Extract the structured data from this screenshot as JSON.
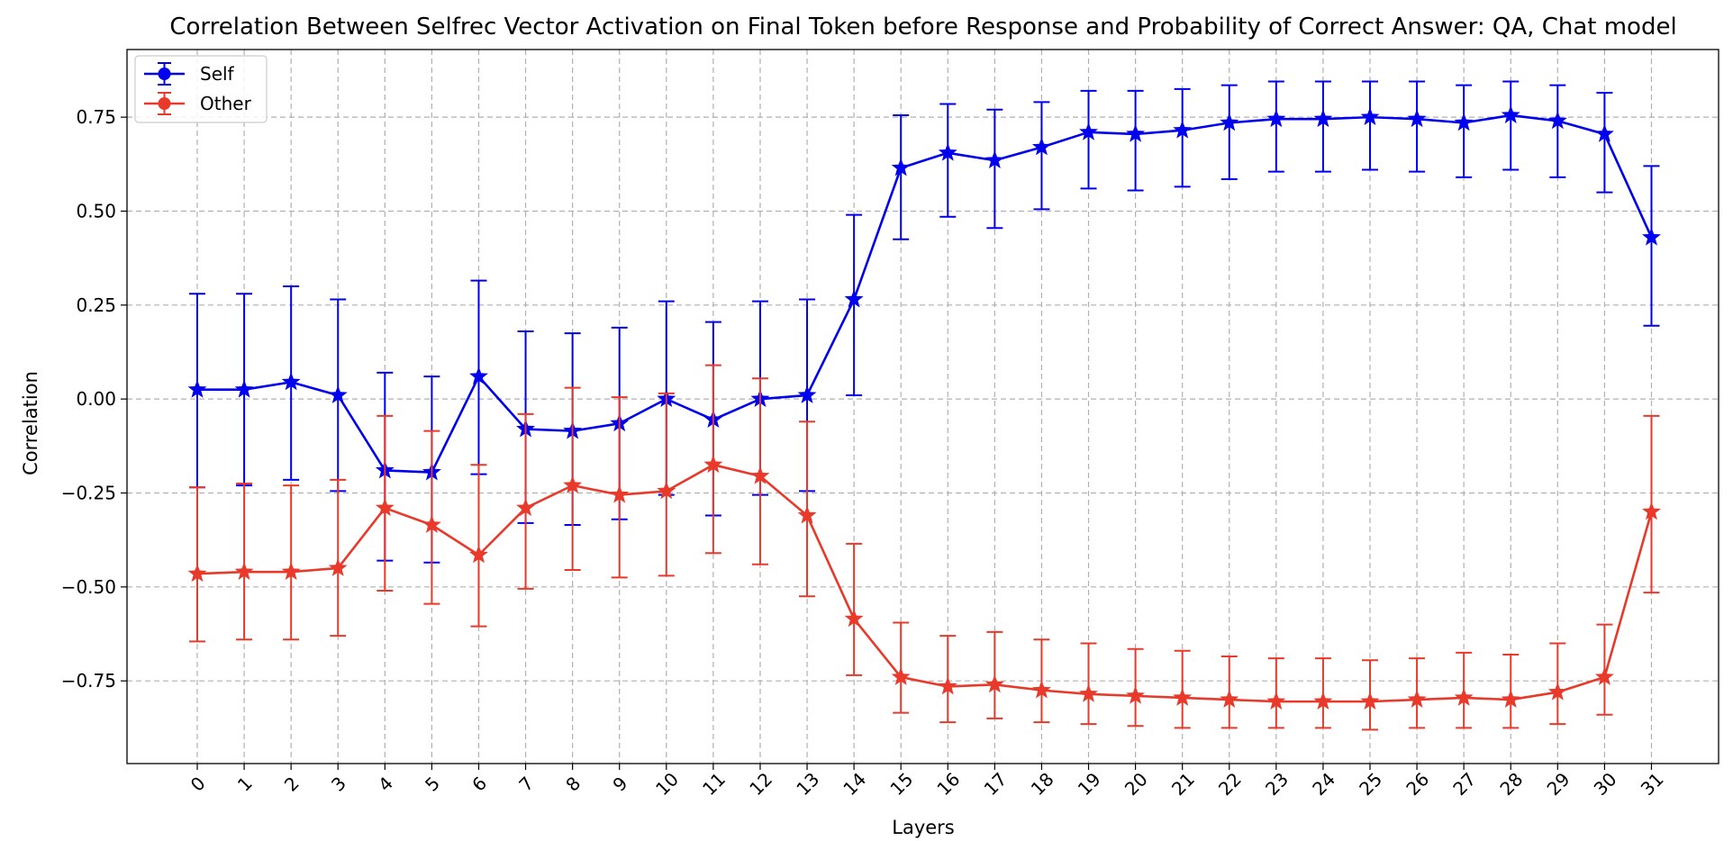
{
  "chart_data": {
    "type": "line",
    "title": "Correlation Between Selfrec Vector Activation on Final Token before Response and Probability of Correct Answer: QA, Chat model",
    "xlabel": "Layers",
    "ylabel": "Correlation",
    "x": [
      0,
      1,
      2,
      3,
      4,
      5,
      6,
      7,
      8,
      9,
      10,
      11,
      12,
      13,
      14,
      15,
      16,
      17,
      18,
      19,
      20,
      21,
      22,
      23,
      24,
      25,
      26,
      27,
      28,
      29,
      30,
      31
    ],
    "x_tick_labels": [
      "0",
      "1",
      "2",
      "3",
      "4",
      "5",
      "6",
      "7",
      "8",
      "9",
      "10",
      "11",
      "12",
      "13",
      "14",
      "15",
      "16",
      "17",
      "18",
      "19",
      "20",
      "21",
      "22",
      "23",
      "24",
      "25",
      "26",
      "27",
      "28",
      "29",
      "30",
      "31"
    ],
    "y_ticks": [
      -0.75,
      -0.5,
      -0.25,
      0.0,
      0.25,
      0.5,
      0.75
    ],
    "y_tick_labels": [
      "−0.75",
      "−0.50",
      "−0.25",
      "0.00",
      "0.25",
      "0.50",
      "0.75"
    ],
    "ylim": [
      -0.97,
      0.93
    ],
    "grid": true,
    "legend_position": "top-left",
    "series": [
      {
        "name": "Self",
        "color": "#0000ee",
        "marker": "star",
        "values": [
          0.025,
          0.025,
          0.045,
          0.01,
          -0.19,
          -0.195,
          0.06,
          -0.08,
          -0.085,
          -0.065,
          0.0,
          -0.055,
          0.0,
          0.01,
          0.265,
          0.615,
          0.655,
          0.635,
          0.67,
          0.71,
          0.705,
          0.715,
          0.735,
          0.745,
          0.745,
          0.75,
          0.745,
          0.735,
          0.755,
          0.74,
          0.705,
          0.43
        ],
        "error_low": [
          -0.235,
          -0.23,
          -0.215,
          -0.245,
          -0.43,
          -0.435,
          -0.2,
          -0.33,
          -0.335,
          -0.32,
          -0.255,
          -0.31,
          -0.255,
          -0.245,
          0.01,
          0.425,
          0.485,
          0.455,
          0.505,
          0.56,
          0.555,
          0.565,
          0.585,
          0.605,
          0.605,
          0.61,
          0.605,
          0.59,
          0.61,
          0.59,
          0.55,
          0.195
        ],
        "error_high": [
          0.28,
          0.28,
          0.3,
          0.265,
          0.07,
          0.06,
          0.315,
          0.18,
          0.175,
          0.19,
          0.26,
          0.205,
          0.26,
          0.265,
          0.49,
          0.755,
          0.785,
          0.77,
          0.79,
          0.82,
          0.82,
          0.825,
          0.835,
          0.845,
          0.845,
          0.845,
          0.845,
          0.835,
          0.845,
          0.835,
          0.815,
          0.62
        ]
      },
      {
        "name": "Other",
        "color": "#e8392a",
        "marker": "star",
        "values": [
          -0.465,
          -0.46,
          -0.46,
          -0.45,
          -0.29,
          -0.335,
          -0.415,
          -0.29,
          -0.23,
          -0.255,
          -0.245,
          -0.175,
          -0.205,
          -0.31,
          -0.585,
          -0.74,
          -0.765,
          -0.76,
          -0.775,
          -0.785,
          -0.79,
          -0.795,
          -0.8,
          -0.805,
          -0.805,
          -0.805,
          -0.8,
          -0.795,
          -0.8,
          -0.78,
          -0.74,
          -0.3
        ],
        "error_low": [
          -0.645,
          -0.64,
          -0.64,
          -0.63,
          -0.51,
          -0.545,
          -0.605,
          -0.505,
          -0.455,
          -0.475,
          -0.47,
          -0.41,
          -0.44,
          -0.525,
          -0.735,
          -0.835,
          -0.86,
          -0.85,
          -0.86,
          -0.865,
          -0.87,
          -0.875,
          -0.875,
          -0.875,
          -0.875,
          -0.88,
          -0.875,
          -0.875,
          -0.875,
          -0.865,
          -0.84,
          -0.515
        ],
        "error_high": [
          -0.235,
          -0.225,
          -0.23,
          -0.215,
          -0.045,
          -0.085,
          -0.175,
          -0.04,
          0.03,
          0.005,
          0.015,
          0.09,
          0.055,
          -0.06,
          -0.385,
          -0.595,
          -0.63,
          -0.62,
          -0.64,
          -0.65,
          -0.665,
          -0.67,
          -0.685,
          -0.69,
          -0.69,
          -0.695,
          -0.69,
          -0.675,
          -0.68,
          -0.65,
          -0.6,
          -0.045
        ]
      }
    ]
  }
}
